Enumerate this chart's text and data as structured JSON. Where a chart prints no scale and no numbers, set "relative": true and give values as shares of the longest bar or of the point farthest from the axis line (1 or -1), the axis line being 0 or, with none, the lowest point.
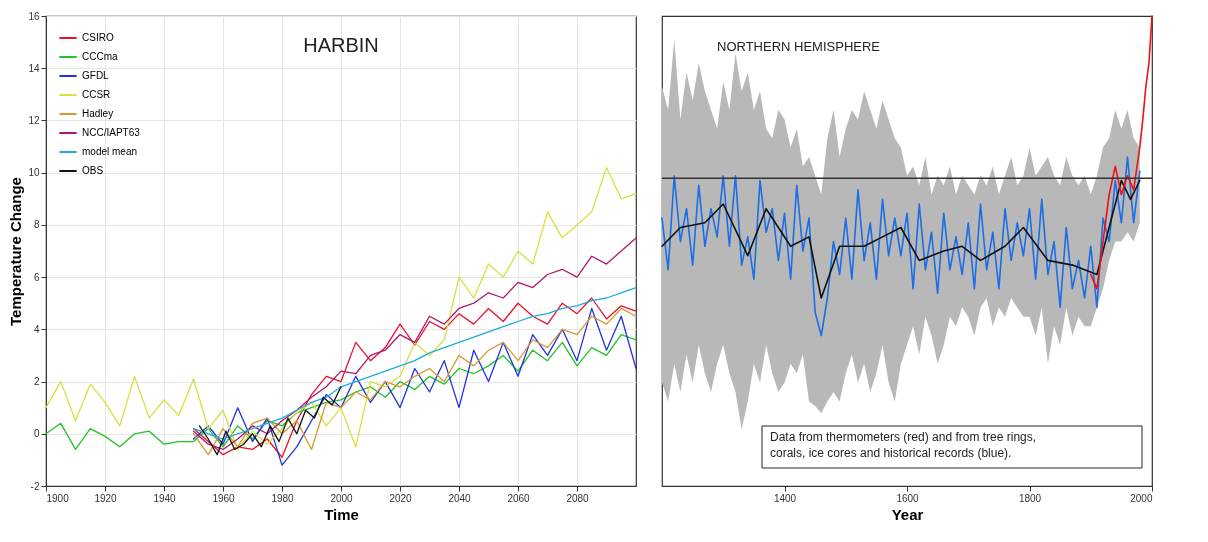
{
  "chart_data": [
    {
      "type": "line",
      "title": "HARBIN",
      "xlabel": "Time",
      "ylabel": "Temperature Change",
      "xlim": [
        1900,
        2100
      ],
      "xticks": [
        1900,
        1920,
        1940,
        1960,
        1980,
        2000,
        2020,
        2040,
        2060,
        2080
      ],
      "ylim": [
        -2,
        16
      ],
      "yticks": [
        -2,
        0,
        2,
        4,
        6,
        8,
        10,
        12,
        14,
        16
      ],
      "grid": true,
      "legend": "top left",
      "line_style": "solid",
      "x": [
        1950,
        1955,
        1960,
        1965,
        1970,
        1975,
        1980,
        1985,
        1990,
        1995,
        2000,
        2005,
        2010,
        2015,
        2020,
        2025,
        2030,
        2035,
        2040,
        2045,
        2050,
        2055,
        2060,
        2065,
        2070,
        2075,
        2080,
        2085,
        2090,
        2095,
        2100
      ],
      "series": [
        {
          "name": "CSIRO",
          "color": "#e8112d",
          "values": [
            0.2,
            -0.3,
            -0.8,
            -0.5,
            -0.6,
            -0.2,
            -0.9,
            0.5,
            1.5,
            2.2,
            2.0,
            3.5,
            2.8,
            3.3,
            4.2,
            3.4,
            4.3,
            4.0,
            4.6,
            4.2,
            4.8,
            4.3,
            5.0,
            4.5,
            4.2,
            5.0,
            4.6,
            5.2,
            4.4,
            4.9,
            4.7
          ]
        },
        {
          "name": "CCCma",
          "color": "#22c322",
          "x": [
            1900,
            1905,
            1910,
            1915,
            1920,
            1925,
            1930,
            1935,
            1940,
            1945,
            1950,
            1955,
            1960,
            1965,
            1970,
            1975,
            1980,
            1985,
            1990,
            1995,
            2000,
            2005,
            2010,
            2015,
            2020,
            2025,
            2030,
            2035,
            2040,
            2045,
            2050,
            2055,
            2060,
            2065,
            2070,
            2075,
            2080,
            2085,
            2090,
            2095,
            2100
          ],
          "values": [
            0,
            0.4,
            -0.6,
            0.2,
            -0.1,
            -0.5,
            0.0,
            0.1,
            -0.4,
            -0.3,
            -0.3,
            0.2,
            -0.5,
            0.3,
            -0.2,
            0.5,
            0.3,
            0.8,
            1.0,
            1.2,
            1.3,
            1.6,
            1.8,
            1.4,
            2.0,
            1.7,
            2.2,
            1.9,
            2.5,
            2.3,
            2.6,
            3.0,
            2.4,
            3.2,
            2.8,
            3.5,
            2.6,
            3.3,
            3.0,
            3.8,
            3.6
          ]
        },
        {
          "name": "GFDL",
          "color": "#2233dd",
          "values": [
            -0.2,
            0.3,
            -0.4,
            1.0,
            -0.3,
            0.6,
            -1.2,
            -0.5,
            0.5,
            1.5,
            1.0,
            2.2,
            1.2,
            2.0,
            1.0,
            2.5,
            1.6,
            2.8,
            1.0,
            3.2,
            2.0,
            3.5,
            2.2,
            3.8,
            3.0,
            4.0,
            2.8,
            4.8,
            3.2,
            4.5,
            2.5
          ]
        },
        {
          "name": "CCSR",
          "color": "#d8e040",
          "x": [
            1900,
            1905,
            1910,
            1915,
            1920,
            1925,
            1930,
            1935,
            1940,
            1945,
            1950,
            1955,
            1960,
            1965,
            1970,
            1975,
            1980,
            1985,
            1990,
            1995,
            2000,
            2005,
            2010,
            2015,
            2020,
            2025,
            2030,
            2035,
            2040,
            2045,
            2050,
            2055,
            2060,
            2065,
            2070,
            2075,
            2080,
            2085,
            2090,
            2095,
            2100
          ],
          "values": [
            1.0,
            2.0,
            0.5,
            1.9,
            1.2,
            0.3,
            2.2,
            0.6,
            1.3,
            0.7,
            2.1,
            0.2,
            0.9,
            -0.6,
            0.1,
            -0.4,
            0.2,
            0.8,
            1.2,
            0.3,
            1.0,
            -0.5,
            2.0,
            1.8,
            2.2,
            3.5,
            3.0,
            3.6,
            6.0,
            5.2,
            6.5,
            6.0,
            7.0,
            6.5,
            8.5,
            7.5,
            8.0,
            8.5,
            10.2,
            9.0,
            9.2
          ]
        },
        {
          "name": "Hadley",
          "color": "#d89a30",
          "values": [
            0.0,
            -0.8,
            0.2,
            -0.5,
            0.4,
            0.6,
            0.0,
            0.5,
            -0.6,
            1.2,
            1.0,
            1.6,
            1.3,
            2.0,
            1.8,
            2.2,
            2.5,
            2.0,
            3.0,
            2.6,
            3.2,
            3.5,
            2.8,
            3.6,
            3.3,
            4.0,
            3.8,
            4.5,
            4.2,
            4.8,
            4.5
          ]
        },
        {
          "name": "NCC/IAPT63",
          "color": "#b0186a",
          "values": [
            0.1,
            -0.4,
            -0.6,
            -0.2,
            0.3,
            0.0,
            0.5,
            0.9,
            1.4,
            1.8,
            2.4,
            2.3,
            3.0,
            3.2,
            3.8,
            3.5,
            4.5,
            4.2,
            4.8,
            5.0,
            5.4,
            5.2,
            5.8,
            5.6,
            6.1,
            6.3,
            6.0,
            6.8,
            6.5,
            7.0,
            7.5
          ]
        },
        {
          "name": "model mean",
          "color": "#22aadd",
          "values": [
            0.2,
            0.0,
            -0.2,
            0.0,
            0.2,
            0.4,
            0.6,
            0.9,
            1.2,
            1.4,
            1.8,
            2.0,
            2.2,
            2.4,
            2.6,
            2.8,
            3.1,
            3.3,
            3.5,
            3.7,
            3.9,
            4.1,
            4.3,
            4.5,
            4.6,
            4.8,
            4.9,
            5.1,
            5.2,
            5.4,
            5.6
          ]
        },
        {
          "name": "OBS",
          "color": "#111111",
          "x": [
            1952,
            1955,
            1958,
            1961,
            1964,
            1967,
            1970,
            1973,
            1976,
            1979,
            1982,
            1985,
            1988,
            1991,
            1994,
            1997,
            2000
          ],
          "values": [
            0.3,
            -0.2,
            -0.8,
            0.1,
            -0.6,
            -0.4,
            0.0,
            -0.5,
            0.3,
            -0.3,
            0.6,
            0.0,
            0.9,
            0.6,
            1.4,
            1.1,
            1.8
          ]
        }
      ]
    },
    {
      "type": "line",
      "title": "NORTHERN HEMISPHERE",
      "xlabel": "Year",
      "relative": true,
      "xlim": [
        1200,
        2000
      ],
      "xticks": [
        1400,
        1600,
        1800,
        2000
      ],
      "line_style": "solid",
      "annotations": [
        "Data from thermometers (red) and from tree rings,",
        "corals, ice cores and historical records (blue)."
      ],
      "ref_lines": [
        {
          "axis": "y",
          "value": 0.655,
          "color": "#333333"
        }
      ],
      "series": [
        {
          "color": "#1a6ee8",
          "x": [
            1200,
            1210,
            1220,
            1230,
            1240,
            1250,
            1260,
            1270,
            1280,
            1290,
            1300,
            1310,
            1320,
            1330,
            1340,
            1350,
            1360,
            1370,
            1380,
            1390,
            1400,
            1410,
            1420,
            1430,
            1440,
            1450,
            1460,
            1470,
            1480,
            1490,
            1500,
            1510,
            1520,
            1530,
            1540,
            1550,
            1560,
            1570,
            1580,
            1590,
            1600,
            1610,
            1620,
            1630,
            1640,
            1650,
            1660,
            1670,
            1680,
            1690,
            1700,
            1710,
            1720,
            1730,
            1740,
            1750,
            1760,
            1770,
            1780,
            1790,
            1800,
            1810,
            1820,
            1830,
            1840,
            1850,
            1860,
            1870,
            1880,
            1890,
            1900,
            1910,
            1920,
            1930,
            1940,
            1950,
            1960,
            1970,
            1980
          ],
          "values": [
            0.57,
            0.46,
            0.66,
            0.52,
            0.59,
            0.47,
            0.64,
            0.51,
            0.59,
            0.53,
            0.66,
            0.51,
            0.66,
            0.47,
            0.53,
            0.44,
            0.65,
            0.54,
            0.59,
            0.48,
            0.58,
            0.44,
            0.64,
            0.5,
            0.57,
            0.37,
            0.32,
            0.4,
            0.52,
            0.45,
            0.57,
            0.44,
            0.63,
            0.48,
            0.56,
            0.44,
            0.61,
            0.49,
            0.57,
            0.49,
            0.58,
            0.42,
            0.6,
            0.46,
            0.54,
            0.41,
            0.58,
            0.46,
            0.53,
            0.45,
            0.56,
            0.42,
            0.6,
            0.46,
            0.54,
            0.42,
            0.59,
            0.48,
            0.56,
            0.49,
            0.59,
            0.44,
            0.61,
            0.45,
            0.52,
            0.38,
            0.55,
            0.42,
            0.48,
            0.4,
            0.51,
            0.38,
            0.57,
            0.52,
            0.65,
            0.56,
            0.7,
            0.56,
            0.67
          ],
          "upper": [
            0.85,
            0.8,
            0.95,
            0.78,
            0.88,
            0.82,
            0.9,
            0.84,
            0.8,
            0.76,
            0.86,
            0.8,
            0.92,
            0.84,
            0.88,
            0.8,
            0.84,
            0.76,
            0.74,
            0.8,
            0.78,
            0.72,
            0.76,
            0.68,
            0.7,
            0.66,
            0.62,
            0.74,
            0.8,
            0.7,
            0.76,
            0.8,
            0.78,
            0.84,
            0.8,
            0.76,
            0.82,
            0.78,
            0.74,
            0.72,
            0.66,
            0.68,
            0.64,
            0.7,
            0.62,
            0.66,
            0.64,
            0.68,
            0.62,
            0.66,
            0.64,
            0.62,
            0.66,
            0.64,
            0.68,
            0.62,
            0.66,
            0.7,
            0.64,
            0.66,
            0.72,
            0.66,
            0.68,
            0.7,
            0.66,
            0.64,
            0.7,
            0.66,
            0.64,
            0.66,
            0.62,
            0.66,
            0.72,
            0.74,
            0.8,
            0.76,
            0.8,
            0.74,
            0.72
          ],
          "lower": [
            0.22,
            0.18,
            0.26,
            0.2,
            0.28,
            0.22,
            0.3,
            0.24,
            0.2,
            0.26,
            0.3,
            0.24,
            0.2,
            0.12,
            0.18,
            0.26,
            0.22,
            0.3,
            0.24,
            0.2,
            0.22,
            0.26,
            0.24,
            0.28,
            0.18,
            0.17,
            0.155,
            0.18,
            0.2,
            0.18,
            0.24,
            0.28,
            0.22,
            0.26,
            0.2,
            0.24,
            0.3,
            0.22,
            0.18,
            0.26,
            0.3,
            0.34,
            0.28,
            0.36,
            0.32,
            0.26,
            0.3,
            0.36,
            0.34,
            0.38,
            0.36,
            0.32,
            0.38,
            0.4,
            0.34,
            0.38,
            0.36,
            0.4,
            0.38,
            0.36,
            0.36,
            0.32,
            0.38,
            0.26,
            0.34,
            0.3,
            0.38,
            0.32,
            0.36,
            0.34,
            0.34,
            0.38,
            0.42,
            0.48,
            0.52,
            0.52,
            0.54,
            0.52,
            0.56
          ]
        },
        {
          "color": "#111111",
          "x": [
            1200,
            1230,
            1270,
            1300,
            1340,
            1370,
            1410,
            1440,
            1460,
            1490,
            1530,
            1560,
            1590,
            1620,
            1660,
            1690,
            1720,
            1760,
            1790,
            1830,
            1870,
            1910,
            1930,
            1950,
            1965,
            1980
          ],
          "values": [
            0.51,
            0.55,
            0.56,
            0.6,
            0.49,
            0.59,
            0.51,
            0.53,
            0.4,
            0.51,
            0.51,
            0.53,
            0.55,
            0.48,
            0.5,
            0.51,
            0.48,
            0.51,
            0.55,
            0.48,
            0.47,
            0.45,
            0.55,
            0.65,
            0.61,
            0.65
          ]
        },
        {
          "color": "#ee1111",
          "x": [
            1900,
            1910,
            1920,
            1930,
            1940,
            1950,
            1960,
            1970,
            1980,
            1985,
            1990,
            1995,
            2000
          ],
          "values": [
            0.45,
            0.42,
            0.52,
            0.62,
            0.68,
            0.62,
            0.66,
            0.63,
            0.72,
            0.78,
            0.85,
            0.9,
            1.0
          ]
        }
      ]
    }
  ]
}
